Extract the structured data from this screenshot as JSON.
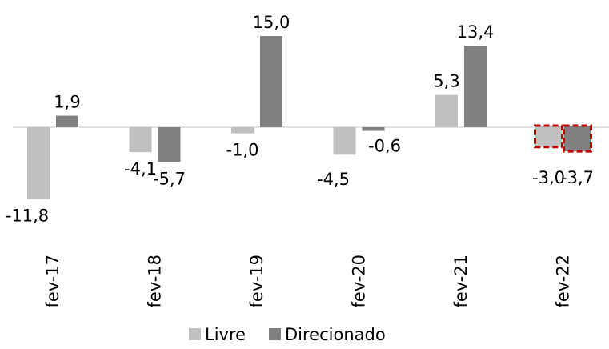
{
  "chart_data": {
    "type": "bar",
    "title": "",
    "xlabel": "",
    "ylabel": "",
    "categories": [
      "fev-17",
      "fev-18",
      "fev-19",
      "fev-20",
      "fev-21",
      "fev-22"
    ],
    "series": [
      {
        "name": "Livre",
        "color": "#c0c0c0",
        "values": [
          -11.8,
          -4.1,
          -1.0,
          -4.5,
          5.3,
          -3.0
        ],
        "labels": [
          "-11,8",
          "-4,1",
          "-1,0",
          "-4,5",
          "5,3",
          "-3,0"
        ]
      },
      {
        "name": "Direcionado",
        "color": "#808080",
        "values": [
          1.9,
          -5.7,
          15.0,
          -0.6,
          13.4,
          -3.7
        ],
        "labels": [
          "1,9",
          "-5,7",
          "15,0",
          "-0,6",
          "13,4",
          "-3,7"
        ]
      }
    ],
    "highlighted_category": "fev-22",
    "highlight_color": "#c00000",
    "ylim": [
      -12,
      15
    ],
    "grid": false,
    "legend_position": "bottom",
    "axis_line_color": "#d9d9d9"
  }
}
